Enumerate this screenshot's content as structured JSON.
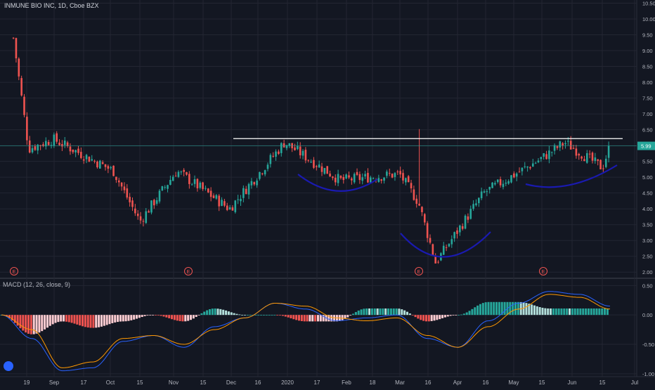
{
  "header": {
    "title": "INMUNE BIO INC, 1D, Cboe BZX"
  },
  "macd": {
    "title": "MACD (12, 26, close, 9)"
  },
  "colors": {
    "background": "#131722",
    "grid": "#232632",
    "up": "#26a69a",
    "down": "#ef5350",
    "hist_up_strong": "#26a69a",
    "hist_up_weak": "#b2dfdb",
    "hist_down_strong": "#ef5350",
    "hist_down_weak": "#ffcdd2",
    "macd_line": "#2962ff",
    "signal_line": "#ff9800",
    "resistance": "#ffffff",
    "curve": "#1a1ab0",
    "price_marker": "#26a69a",
    "current_line": "#26a69a",
    "earnings": "#ef5350"
  },
  "chart_data": [
    {
      "type": "candlestick",
      "title": "INMUNE BIO INC, 1D, Cboe BZX",
      "x_tick_labels": [
        "19",
        "Sep",
        "17",
        "Oct",
        "15",
        "Nov",
        "15",
        "Dec",
        "16",
        "2020",
        "17",
        "Feb",
        "18",
        "Mar",
        "16",
        "Apr",
        "16",
        "May",
        "15",
        "Jun",
        "15",
        "Jul"
      ],
      "y_tick_labels": [
        "2.00",
        "2.50",
        "3.00",
        "3.50",
        "4.00",
        "4.50",
        "5.00",
        "5.50",
        "6.00",
        "6.50",
        "7.00",
        "7.50",
        "8.00",
        "8.50",
        "9.00",
        "9.50",
        "10.00",
        "10.50"
      ],
      "ylim": [
        1.85,
        10.6
      ],
      "current_price": 5.99,
      "current_price_label": "5.99",
      "resistance_level": 6.22,
      "earnings_markers": [
        "E",
        "E",
        "E",
        "E"
      ],
      "key_points": [
        {
          "x": "Aug 12",
          "close": 9.4
        },
        {
          "x": "Aug 20",
          "close": 5.9
        },
        {
          "x": "Sep 1",
          "close": 6.2
        },
        {
          "x": "Oct 1",
          "close": 5.2
        },
        {
          "x": "Oct 15",
          "close": 3.6
        },
        {
          "x": "Nov 1",
          "close": 5.2
        },
        {
          "x": "Dec 1",
          "close": 4.0
        },
        {
          "x": "Dec 30",
          "close": 6.1
        },
        {
          "x": "Feb 1",
          "close": 4.9
        },
        {
          "x": "Mar 1",
          "close": 5.1
        },
        {
          "x": "Mar 11",
          "close": 4.2
        },
        {
          "x": "Mar 20",
          "close": 2.3
        },
        {
          "x": "Apr 15",
          "close": 4.5
        },
        {
          "x": "May 15",
          "close": 5.6
        },
        {
          "x": "May 27",
          "close": 6.1
        },
        {
          "x": "Jun 15",
          "close": 5.3
        },
        {
          "x": "Jun 19",
          "close": 5.99
        }
      ]
    },
    {
      "type": "line",
      "title": "MACD (12, 26, close, 9)",
      "y_tick_labels": [
        "-1.00",
        "-0.50",
        "0.00",
        "0.50"
      ],
      "ylim": [
        -1.05,
        0.6
      ],
      "series": [
        {
          "values": [
            0.0,
            -0.4,
            -0.95,
            -0.9,
            -0.45,
            -0.35,
            -0.55,
            -0.2,
            -0.05,
            0.2,
            0.1,
            -0.1,
            -0.05,
            0.0,
            -0.4,
            -0.55,
            -0.1,
            0.2,
            0.4,
            0.35,
            0.15
          ]
        },
        {
          "values": [
            0.0,
            -0.25,
            -0.9,
            -0.8,
            -0.4,
            -0.35,
            -0.5,
            -0.25,
            -0.05,
            0.2,
            0.15,
            -0.05,
            -0.1,
            -0.05,
            -0.35,
            -0.55,
            -0.2,
            0.1,
            0.35,
            0.3,
            0.1
          ]
        }
      ]
    }
  ]
}
